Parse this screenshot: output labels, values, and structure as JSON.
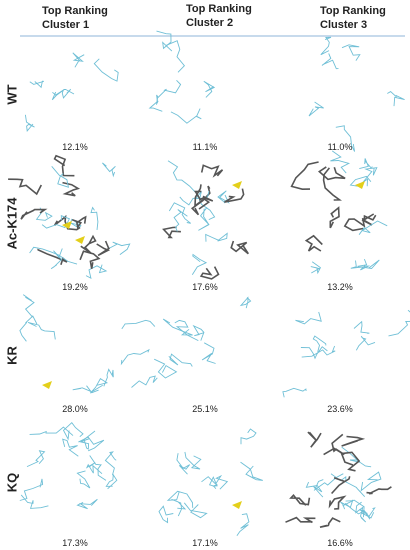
{
  "columns": [
    "Top Ranking Cluster 1",
    "Top Ranking Cluster 2",
    "Top Ranking Cluster 3"
  ],
  "rows": [
    {
      "label": "WT",
      "values": [
        "12.1%",
        "11.1%",
        "11.0%"
      ]
    },
    {
      "label": "Ac-K174",
      "values": [
        "19.2%",
        "17.6%",
        "13.2%"
      ]
    },
    {
      "label": "KR",
      "values": [
        "28.0%",
        "25.1%",
        "23.6%"
      ]
    },
    {
      "label": "KQ",
      "values": [
        "17.3%",
        "17.1%",
        "16.6%"
      ]
    }
  ]
}
